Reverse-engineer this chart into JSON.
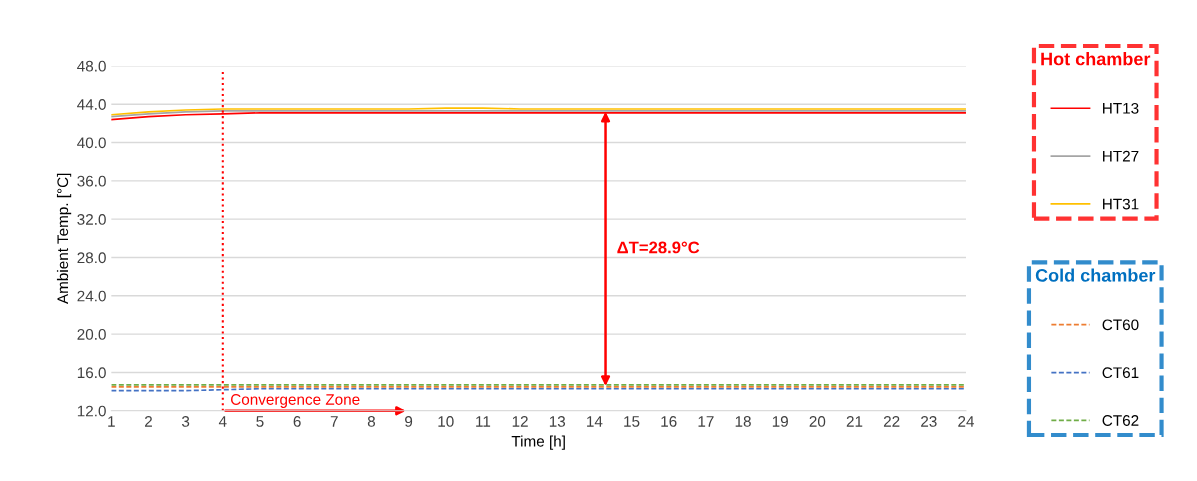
{
  "chart_data": {
    "type": "line",
    "xlabel": "Time [h]",
    "ylabel": "Ambient Temp. [°C]",
    "categories": [
      "1",
      "2",
      "3",
      "4",
      "5",
      "6",
      "7",
      "8",
      "9",
      "10",
      "11",
      "12",
      "13",
      "14",
      "15",
      "16",
      "17",
      "18",
      "19",
      "20",
      "21",
      "22",
      "23",
      "24"
    ],
    "ylim": [
      12,
      48
    ],
    "yticks": [
      {
        "value": 12,
        "label": "12.0"
      },
      {
        "value": 16,
        "label": "16.0"
      },
      {
        "value": 20,
        "label": "20.0"
      },
      {
        "value": 24,
        "label": "24.0"
      },
      {
        "value": 28,
        "label": "28.0"
      },
      {
        "value": 32,
        "label": "32.0"
      },
      {
        "value": 36,
        "label": "36.0"
      },
      {
        "value": 40,
        "label": "40.0"
      },
      {
        "value": 44,
        "label": "44.0"
      },
      {
        "value": 48,
        "label": "48.0"
      }
    ],
    "grid": "y",
    "legend": "right",
    "marker": "none",
    "series": [
      {
        "name": "HT13",
        "color": "#ff0000",
        "line_style": "solid",
        "values": [
          42.4,
          42.7,
          42.9,
          43.0,
          43.1,
          43.1,
          43.1,
          43.1,
          43.1,
          43.1,
          43.1,
          43.1,
          43.1,
          43.1,
          43.1,
          43.1,
          43.1,
          43.1,
          43.1,
          43.1,
          43.1,
          43.1,
          43.1,
          43.1
        ]
      },
      {
        "name": "HT27",
        "color": "#a5a5a5",
        "line_style": "solid",
        "values": [
          42.7,
          43.0,
          43.2,
          43.3,
          43.3,
          43.3,
          43.3,
          43.3,
          43.3,
          43.3,
          43.3,
          43.3,
          43.3,
          43.3,
          43.3,
          43.3,
          43.3,
          43.3,
          43.3,
          43.3,
          43.3,
          43.3,
          43.3,
          43.3
        ]
      },
      {
        "name": "HT31",
        "color": "#ffc000",
        "line_style": "solid",
        "values": [
          42.9,
          43.2,
          43.4,
          43.5,
          43.5,
          43.5,
          43.5,
          43.5,
          43.5,
          43.6,
          43.6,
          43.5,
          43.5,
          43.5,
          43.5,
          43.5,
          43.5,
          43.5,
          43.5,
          43.5,
          43.5,
          43.5,
          43.5,
          43.5
        ]
      },
      {
        "name": "CT60",
        "color": "#ed7d31",
        "line_style": "dashed",
        "values": [
          14.5,
          14.5,
          14.5,
          14.5,
          14.5,
          14.5,
          14.5,
          14.5,
          14.5,
          14.5,
          14.5,
          14.5,
          14.5,
          14.5,
          14.5,
          14.5,
          14.5,
          14.5,
          14.5,
          14.5,
          14.5,
          14.5,
          14.5,
          14.5
        ]
      },
      {
        "name": "CT61",
        "color": "#4472c4",
        "line_style": "dashed",
        "values": [
          14.1,
          14.1,
          14.1,
          14.2,
          14.3,
          14.3,
          14.3,
          14.3,
          14.3,
          14.3,
          14.3,
          14.3,
          14.3,
          14.3,
          14.3,
          14.3,
          14.3,
          14.3,
          14.3,
          14.3,
          14.3,
          14.3,
          14.3,
          14.3
        ]
      },
      {
        "name": "CT62",
        "color": "#70ad47",
        "line_style": "dashed",
        "values": [
          14.7,
          14.7,
          14.7,
          14.7,
          14.7,
          14.7,
          14.7,
          14.7,
          14.7,
          14.7,
          14.7,
          14.7,
          14.7,
          14.7,
          14.7,
          14.7,
          14.7,
          14.7,
          14.7,
          14.7,
          14.7,
          14.7,
          14.7,
          14.7
        ]
      }
    ],
    "ref_lines": [
      {
        "axis": "x",
        "value": "4",
        "color": "#ff0000",
        "line_style": "dotted"
      }
    ],
    "annotations": [
      "Hot chamber",
      "Cold chamber",
      "ΔT=28.9°C",
      {
        "text": "Convergence Zone",
        "x": "4",
        "y": 12
      }
    ]
  }
}
